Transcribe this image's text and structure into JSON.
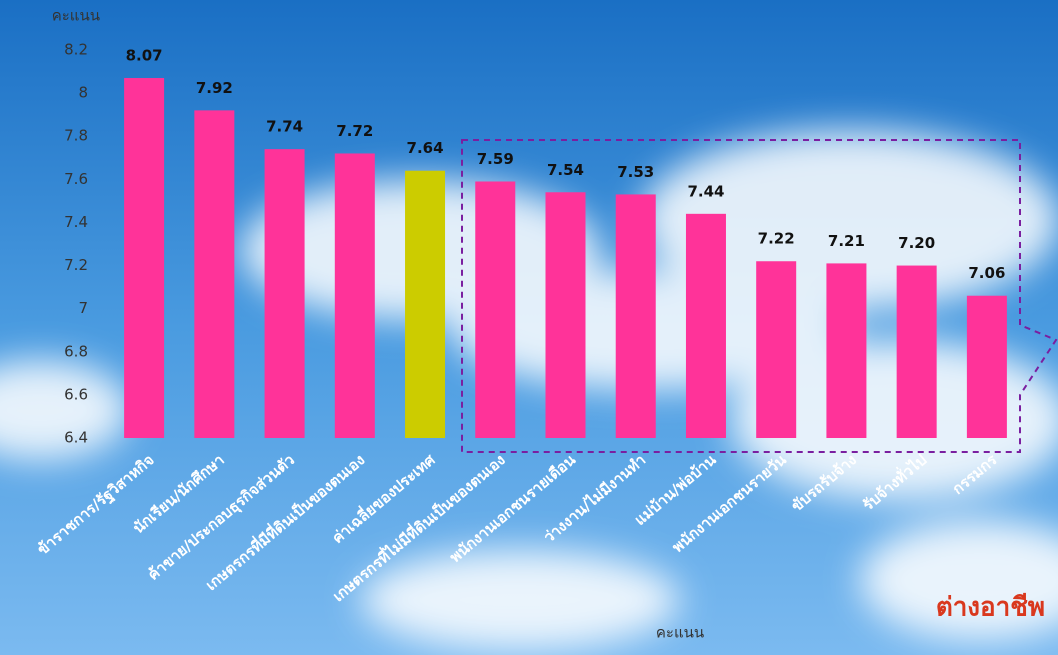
{
  "chart_data": {
    "type": "bar",
    "y_label": "คะแนน",
    "x_label": "คะแนน",
    "annotation": "ต่างอาชีพ",
    "categories": [
      "ข้าราชการ/รัฐวิสาหกิจ",
      "นักเรียน/นักศึกษา",
      "ค้าขาย/ประกอบธุรกิจส่วนตัว",
      "เกษตรกรที่มีที่ดินเป็นของตนเอง",
      "ค่าเฉลี่ยของประเทศ",
      "เกษตรกรที่ไม่มีที่ดินเป็นของตนเอง",
      "พนักงานเอกชนรายเดือน",
      "ว่างงาน/ไม่มีงานทำ",
      "แม่บ้าน/พ่อบ้าน",
      "พนักงานเอกชนรายวัน",
      "ขับรถรับจ้าง",
      "รับจ้างทั่วไป",
      "กรรมกร"
    ],
    "values": [
      8.07,
      7.92,
      7.74,
      7.72,
      7.64,
      7.59,
      7.54,
      7.53,
      7.44,
      7.22,
      7.21,
      7.2,
      7.06
    ],
    "value_labels": [
      "8.07",
      "7.92",
      "7.74",
      "7.72",
      "7.64",
      "7.59",
      "7.54",
      "7.53",
      "7.44",
      "7.22",
      "7.21",
      "7.20",
      "7.06"
    ],
    "colors": [
      "#ff3399",
      "#ff3399",
      "#ff3399",
      "#ff3399",
      "#cccc00",
      "#ff3399",
      "#ff3399",
      "#ff3399",
      "#ff3399",
      "#ff3399",
      "#ff3399",
      "#ff3399",
      "#ff3399"
    ],
    "ylim": [
      6.4,
      8.2
    ],
    "yticks": [
      6.4,
      6.6,
      6.8,
      7,
      7.2,
      7.4,
      7.6,
      7.8,
      8,
      8.2
    ],
    "grid": false
  }
}
